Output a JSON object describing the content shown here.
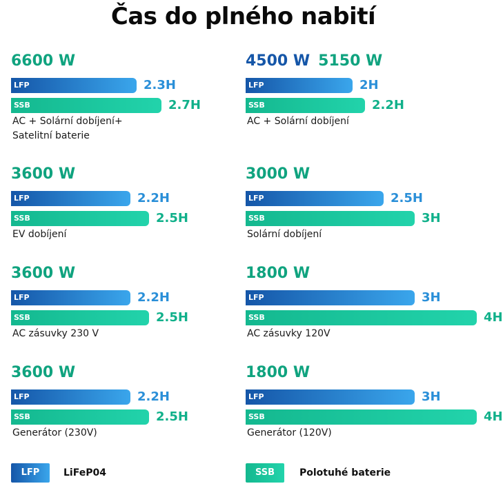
{
  "title": "Čas do plného nabití",
  "colors": {
    "lfp_start": "#1556a8",
    "lfp_end": "#3aa6ec",
    "ssb_start": "#14b88f",
    "ssb_end": "#22d3ab",
    "power_green": "#10a37f",
    "power_blue": "#1556a8"
  },
  "legend": {
    "lfp_chip": "LFP",
    "lfp_text": "LiFeP04",
    "ssb_chip": "SSB",
    "ssb_text": "Polotuhé baterie"
  },
  "chart_data": [
    {
      "type": "bar",
      "power": [
        "6600 W"
      ],
      "categories": [
        "LFP",
        "SSB"
      ],
      "values": [
        2.3,
        2.7
      ],
      "value_labels": [
        "2.3H",
        "2.7H"
      ],
      "caption": [
        "AC + Solární dobíjení+",
        "Satelitní baterie"
      ]
    },
    {
      "type": "bar",
      "power": [
        "4500 W",
        "5150 W"
      ],
      "categories": [
        "LFP",
        "SSB"
      ],
      "values": [
        2,
        2.2
      ],
      "value_labels": [
        "2H",
        "2.2H"
      ],
      "caption": [
        "AC + Solární dobíjení"
      ]
    },
    {
      "type": "bar",
      "power": [
        "3600 W"
      ],
      "categories": [
        "LFP",
        "SSB"
      ],
      "values": [
        2.2,
        2.5
      ],
      "value_labels": [
        "2.2H",
        "2.5H"
      ],
      "caption": [
        "EV dobíjení"
      ]
    },
    {
      "type": "bar",
      "power": [
        "3000 W"
      ],
      "categories": [
        "LFP",
        "SSB"
      ],
      "values": [
        2.5,
        3
      ],
      "value_labels": [
        "2.5H",
        "3H"
      ],
      "caption": [
        "Solární dobíjení"
      ]
    },
    {
      "type": "bar",
      "power": [
        "3600 W"
      ],
      "categories": [
        "LFP",
        "SSB"
      ],
      "values": [
        2.2,
        2.5
      ],
      "value_labels": [
        "2.2H",
        "2.5H"
      ],
      "caption": [
        "AC zásuvky 230 V"
      ]
    },
    {
      "type": "bar",
      "power": [
        "1800 W"
      ],
      "categories": [
        "LFP",
        "SSB"
      ],
      "values": [
        3,
        4
      ],
      "value_labels": [
        "3H",
        "4H"
      ],
      "caption": [
        "AC zásuvky 120V"
      ]
    },
    {
      "type": "bar",
      "power": [
        "3600 W"
      ],
      "categories": [
        "LFP",
        "SSB"
      ],
      "values": [
        2.2,
        2.5
      ],
      "value_labels": [
        "2.2H",
        "2.5H"
      ],
      "caption": [
        "Generátor (230V)"
      ]
    },
    {
      "type": "bar",
      "power": [
        "1800 W"
      ],
      "categories": [
        "LFP",
        "SSB"
      ],
      "values": [
        3,
        4
      ],
      "value_labels": [
        "3H",
        "4H"
      ],
      "caption": [
        "Generátor (120V)"
      ]
    }
  ]
}
